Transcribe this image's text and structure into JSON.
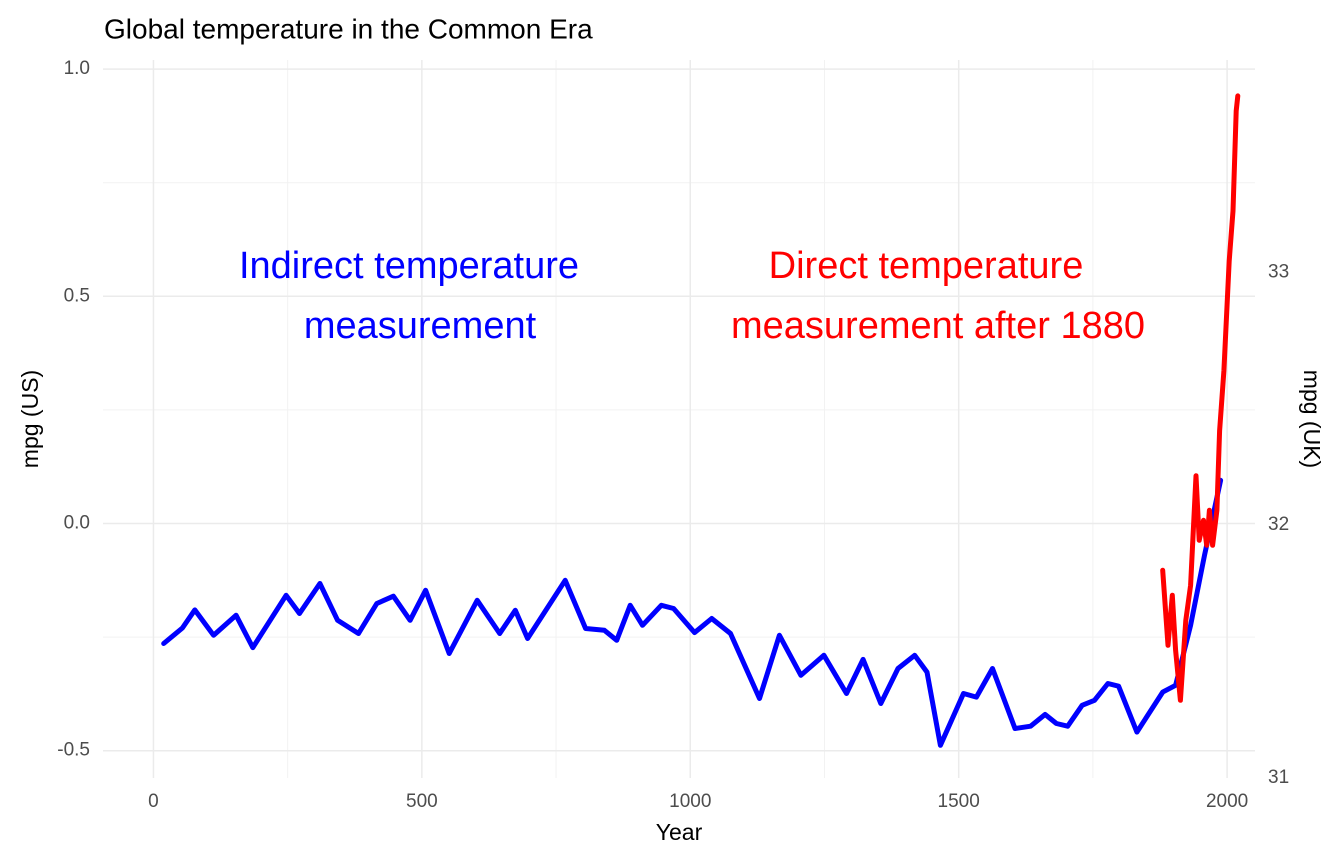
{
  "chart_data": {
    "type": "line",
    "title": "Global temperature in the Common Era",
    "x_label": "Year",
    "y_label": "mpg (US)",
    "y2_label": "mpg (UK)",
    "xlim": [
      -94,
      2052
    ],
    "xticks": [
      0,
      500,
      1000,
      1500,
      2000
    ],
    "ylim": [
      -0.56,
      1.02
    ],
    "yticks": [
      {
        "value": -0.5,
        "label": "-0.5"
      },
      {
        "value": 0,
        "label": "0.0"
      },
      {
        "value": 0.5,
        "label": "0.5"
      },
      {
        "value": 1,
        "label": "1.0"
      }
    ],
    "y2lim": [
      31,
      33.84
    ],
    "y2ticks": [
      31,
      32,
      33
    ],
    "grid": true,
    "annotations": [
      {
        "lines": [
          "Indirect temperature",
          "measurement"
        ],
        "color": "#0000ff"
      },
      {
        "lines": [
          "Direct temperature",
          "measurement after 1880"
        ],
        "color": "#ff0000"
      }
    ],
    "series": [
      {
        "color": "#0000ff",
        "x": [
          19,
          54,
          77,
          112,
          154,
          185,
          247,
          272,
          310,
          343,
          382,
          416,
          447,
          478,
          507,
          551,
          603,
          645,
          674,
          697,
          728,
          767,
          805,
          840,
          863,
          888,
          911,
          946,
          969,
          1008,
          1040,
          1075,
          1129,
          1166,
          1206,
          1249,
          1291,
          1322,
          1355,
          1387,
          1418,
          1441,
          1466,
          1509,
          1533,
          1563,
          1605,
          1634,
          1661,
          1682,
          1703,
          1730,
          1753,
          1778,
          1798,
          1832,
          1880,
          1904,
          1932,
          1958,
          1988
        ],
        "values": [
          -0.264,
          -0.23,
          -0.19,
          -0.246,
          -0.202,
          -0.273,
          -0.158,
          -0.198,
          -0.132,
          -0.213,
          -0.242,
          -0.176,
          -0.16,
          -0.213,
          -0.147,
          -0.286,
          -0.169,
          -0.242,
          -0.191,
          -0.253,
          -0.196,
          -0.125,
          -0.231,
          -0.235,
          -0.257,
          -0.18,
          -0.224,
          -0.18,
          -0.187,
          -0.24,
          -0.209,
          -0.242,
          -0.385,
          -0.246,
          -0.334,
          -0.29,
          -0.374,
          -0.299,
          -0.396,
          -0.319,
          -0.29,
          -0.327,
          -0.488,
          -0.374,
          -0.382,
          -0.319,
          -0.451,
          -0.446,
          -0.42,
          -0.44,
          -0.446,
          -0.4,
          -0.389,
          -0.352,
          -0.358,
          -0.459,
          -0.371,
          -0.356,
          -0.224,
          -0.07,
          0.095
        ]
      },
      {
        "color": "#ff0000",
        "x": [
          1880,
          1890,
          1898,
          1904,
          1913,
          1923,
          1932,
          1942,
          1948,
          1956,
          1962,
          1967,
          1973,
          1981,
          1986,
          1994,
          2004,
          2011,
          2017,
          2020
        ],
        "values": [
          -0.103,
          -0.268,
          -0.158,
          -0.279,
          -0.389,
          -0.213,
          -0.136,
          0.105,
          -0.037,
          0.007,
          -0.048,
          0.029,
          -0.048,
          0.029,
          0.204,
          0.336,
          0.578,
          0.688,
          0.908,
          0.941
        ]
      }
    ]
  }
}
